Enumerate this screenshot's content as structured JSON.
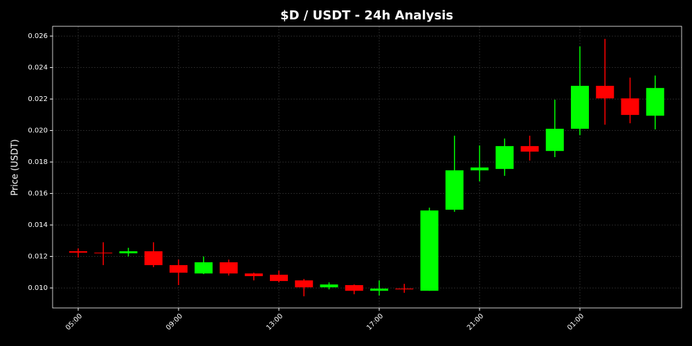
{
  "chart_data": {
    "type": "candlestick",
    "title": "$D / USDT - 24h Analysis",
    "y_label": "Price (USDT)",
    "categories": [
      "05:00",
      null,
      null,
      null,
      "09:00",
      null,
      null,
      null,
      "13:00",
      null,
      null,
      null,
      "17:00",
      null,
      null,
      null,
      "21:00",
      null,
      null,
      null,
      "01:00",
      null,
      null,
      null
    ],
    "open": [
      0.01233,
      0.01224,
      0.0122,
      0.01233,
      0.01145,
      0.01092,
      0.01163,
      0.01092,
      0.01084,
      0.01048,
      0.01004,
      0.01018,
      0.00982,
      0.00996,
      0.00982,
      0.01497,
      0.01747,
      0.01756,
      0.01901,
      0.0187,
      0.02011,
      0.02284,
      0.02204,
      0.02094
    ],
    "high": [
      0.01251,
      0.0129,
      0.01255,
      0.0129,
      0.0118,
      0.012,
      0.0118,
      0.01097,
      0.0111,
      0.01057,
      0.01035,
      0.01022,
      0.01048,
      0.01026,
      0.0151,
      0.01967,
      0.01905,
      0.01949,
      0.01967,
      0.02196,
      0.02534,
      0.02582,
      0.02336,
      0.02349
    ],
    "low": [
      0.01193,
      0.01145,
      0.012,
      0.01132,
      0.01018,
      0.01088,
      0.01079,
      0.01048,
      0.01035,
      0.00947,
      0.00991,
      0.0096,
      0.00952,
      0.00969,
      0.00982,
      0.01484,
      0.01677,
      0.01712,
      0.01809,
      0.01831,
      0.01971,
      0.02037,
      0.02046,
      0.02007
    ],
    "close": [
      0.01224,
      0.01222,
      0.01233,
      0.01145,
      0.01097,
      0.01163,
      0.01092,
      0.01075,
      0.01044,
      0.01004,
      0.01022,
      0.00982,
      0.00996,
      0.00991,
      0.01492,
      0.01747,
      0.01765,
      0.01901,
      0.01866,
      0.02011,
      0.02284,
      0.02204,
      0.02099,
      0.0227
    ],
    "up_color": "#00ff00",
    "down_color": "#ff0000",
    "ylim": [
      0.00873,
      0.02662
    ],
    "yticks": [
      {
        "value": 0.01,
        "label": "0.010"
      },
      {
        "value": 0.012,
        "label": "0.012"
      },
      {
        "value": 0.014,
        "label": "0.014"
      },
      {
        "value": 0.016,
        "label": "0.016"
      },
      {
        "value": 0.018,
        "label": "0.018"
      },
      {
        "value": 0.02,
        "label": "0.020"
      },
      {
        "value": 0.022,
        "label": "0.022"
      },
      {
        "value": 0.024,
        "label": "0.024"
      },
      {
        "value": 0.026,
        "label": "0.026"
      }
    ],
    "grid": true
  }
}
